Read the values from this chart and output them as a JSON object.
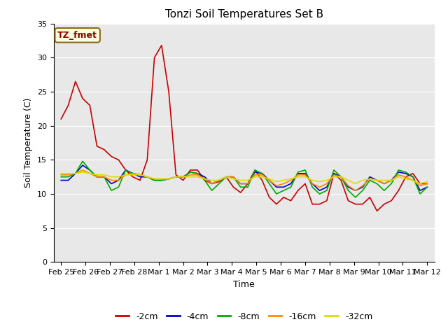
{
  "title": "Tonzi Soil Temperatures Set B",
  "xlabel": "Time",
  "ylabel": "Soil Temperature (C)",
  "annotation_text": "TZ_fmet",
  "ylim": [
    0,
    35
  ],
  "yticks": [
    0,
    5,
    10,
    15,
    20,
    25,
    30,
    35
  ],
  "x_labels": [
    "Feb 25",
    "Feb 26",
    "Feb 27",
    "Feb 28",
    "Mar 1",
    "Mar 2",
    "Mar 3",
    "Mar 4",
    "Mar 5",
    "Mar 6",
    "Mar 7",
    "Mar 8",
    "Mar 9",
    "Mar 10",
    "Mar 11",
    "Mar 12"
  ],
  "plot_bg_color": "#e8e8e8",
  "series": {
    "-2cm": {
      "color": "#cc0000",
      "values": [
        21.0,
        23.0,
        26.5,
        24.0,
        23.0,
        17.0,
        16.5,
        15.5,
        15.0,
        13.5,
        12.5,
        12.0,
        15.0,
        30.0,
        31.8,
        25.0,
        12.8,
        12.0,
        13.5,
        13.5,
        12.0,
        11.5,
        11.8,
        12.5,
        11.0,
        10.2,
        11.5,
        13.5,
        12.0,
        9.5,
        8.5,
        9.5,
        9.0,
        10.5,
        11.5,
        8.5,
        8.5,
        9.0,
        13.0,
        12.0,
        9.0,
        8.5,
        8.5,
        9.5,
        7.5,
        8.5,
        9.0,
        10.5,
        12.5,
        13.0,
        11.5,
        11.5
      ]
    },
    "-4cm": {
      "color": "#0000cc",
      "values": [
        12.0,
        12.0,
        13.0,
        14.2,
        13.5,
        12.5,
        12.5,
        11.5,
        12.0,
        13.5,
        13.0,
        12.5,
        12.5,
        12.0,
        12.0,
        12.2,
        12.5,
        12.5,
        13.2,
        13.0,
        12.5,
        11.5,
        12.0,
        12.5,
        12.5,
        11.5,
        11.5,
        13.2,
        13.0,
        12.0,
        11.0,
        11.0,
        11.5,
        13.0,
        13.0,
        11.5,
        10.5,
        11.0,
        13.0,
        12.5,
        11.0,
        10.5,
        11.0,
        12.5,
        12.0,
        11.5,
        12.0,
        13.2,
        13.0,
        12.5,
        10.5,
        11.0
      ]
    },
    "-8cm": {
      "color": "#00aa00",
      "values": [
        12.5,
        12.5,
        13.0,
        14.8,
        13.5,
        12.5,
        12.5,
        10.5,
        11.0,
        13.5,
        13.0,
        12.8,
        12.5,
        12.0,
        12.0,
        12.2,
        12.5,
        12.5,
        13.2,
        13.0,
        12.0,
        10.5,
        11.5,
        12.5,
        12.5,
        11.0,
        11.0,
        13.5,
        13.0,
        11.5,
        10.0,
        10.5,
        11.0,
        13.2,
        13.5,
        11.0,
        10.0,
        10.5,
        13.5,
        12.5,
        10.5,
        9.5,
        10.5,
        12.0,
        11.5,
        10.5,
        11.5,
        13.5,
        13.2,
        12.5,
        10.0,
        11.0
      ]
    },
    "-16cm": {
      "color": "#ff8800",
      "values": [
        12.8,
        12.8,
        13.0,
        13.5,
        13.0,
        12.5,
        12.5,
        12.0,
        12.0,
        12.8,
        13.0,
        12.8,
        12.5,
        12.2,
        12.2,
        12.2,
        12.5,
        12.5,
        12.8,
        12.8,
        12.2,
        11.5,
        12.0,
        12.5,
        12.5,
        11.5,
        11.5,
        12.8,
        12.8,
        12.0,
        11.2,
        11.5,
        12.0,
        12.8,
        12.8,
        11.5,
        11.0,
        11.5,
        12.8,
        12.5,
        11.2,
        10.5,
        11.2,
        12.2,
        12.0,
        11.5,
        12.0,
        12.8,
        12.5,
        12.0,
        11.2,
        11.5
      ]
    },
    "-32cm": {
      "color": "#dddd00",
      "values": [
        13.0,
        13.0,
        13.0,
        13.2,
        13.0,
        12.8,
        12.8,
        12.5,
        12.5,
        12.8,
        12.8,
        12.8,
        12.5,
        12.2,
        12.2,
        12.2,
        12.5,
        12.5,
        12.5,
        12.5,
        12.2,
        12.0,
        12.0,
        12.5,
        12.2,
        12.0,
        12.0,
        12.5,
        12.5,
        12.2,
        11.8,
        12.0,
        12.2,
        12.5,
        12.5,
        12.0,
        11.8,
        12.0,
        12.5,
        12.5,
        12.0,
        11.5,
        12.0,
        12.2,
        12.0,
        12.0,
        12.0,
        12.5,
        12.2,
        12.0,
        11.5,
        11.8
      ]
    }
  },
  "legend_order": [
    "-2cm",
    "-4cm",
    "-8cm",
    "-16cm",
    "-32cm"
  ],
  "title_fontsize": 11,
  "label_fontsize": 9,
  "tick_fontsize": 8,
  "annotation_fontsize": 9,
  "line_width": 1.2
}
